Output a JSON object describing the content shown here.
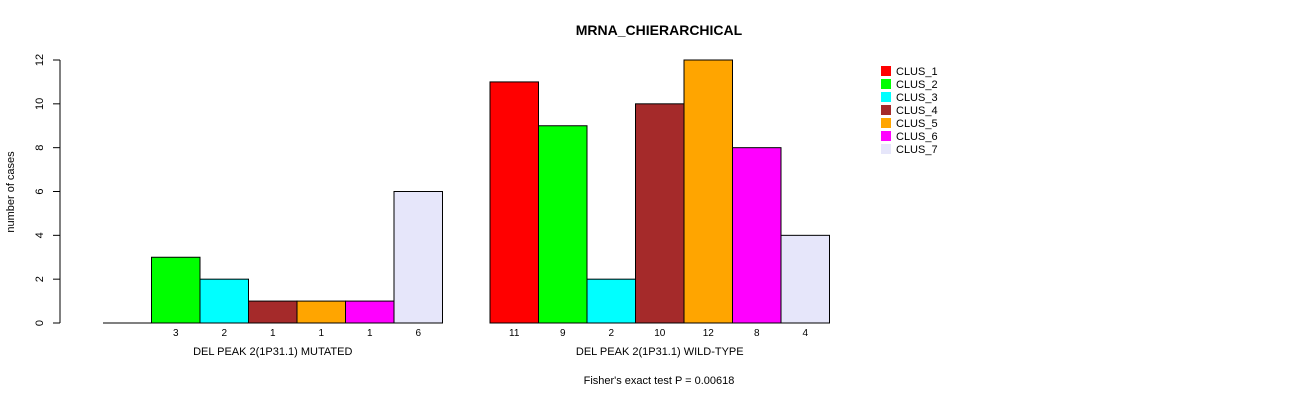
{
  "chart_data": {
    "type": "bar",
    "title": "MRNA_CHIERARCHICAL",
    "ylabel": "number of cases",
    "ylim": [
      0,
      12
    ],
    "yticks": [
      0,
      2,
      4,
      6,
      8,
      10,
      12
    ],
    "footer": "Fisher's exact test P = 0.00618",
    "series_names": [
      "CLUS_1",
      "CLUS_2",
      "CLUS_3",
      "CLUS_4",
      "CLUS_5",
      "CLUS_6",
      "CLUS_7"
    ],
    "colors": [
      "#ff0000",
      "#00ff00",
      "#00ffff",
      "#a52a2a",
      "#ffa500",
      "#ff00ff",
      "#e6e6fa"
    ],
    "groups": [
      {
        "label": "DEL PEAK  2(1P31.1) MUTATED",
        "values": [
          0,
          3,
          2,
          1,
          1,
          1,
          6
        ],
        "bar_labels": [
          "",
          "3",
          "2",
          "1",
          "1",
          "1",
          "6"
        ]
      },
      {
        "label": "DEL PEAK  2(1P31.1) WILD-TYPE",
        "values": [
          11,
          9,
          2,
          10,
          12,
          8,
          4
        ],
        "bar_labels": [
          "11",
          "9",
          "2",
          "10",
          "12",
          "8",
          "4"
        ]
      }
    ],
    "legend_position": "top-right"
  }
}
